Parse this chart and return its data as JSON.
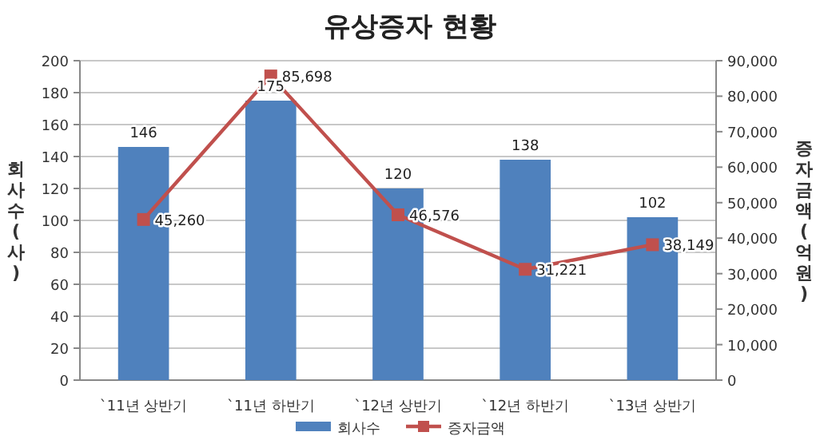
{
  "chart_data": {
    "type": "bar",
    "title": "유상증자 현황",
    "ylabel": "회사수(사)",
    "y2label": "증자금액(억원)",
    "categories": [
      "`11년 상반기",
      "`11년 하반기",
      "`12년 상반기",
      "`12년 하반기",
      "`13년 상반기"
    ],
    "series": [
      {
        "name": "회사수",
        "color": "#4f81bd",
        "values": [
          146,
          175,
          120,
          138,
          102
        ]
      },
      {
        "name": "증자금액",
        "type": "line",
        "axis": "y2",
        "color": "#c0504d",
        "marker": "square",
        "values": [
          45260,
          85698,
          46576,
          31221,
          38149
        ],
        "value_labels": [
          "45,260",
          "85,698",
          "46,576",
          "31,221",
          "38,149"
        ]
      }
    ],
    "ylim": [
      0,
      200
    ],
    "yticks": [
      0,
      20,
      40,
      60,
      80,
      100,
      120,
      140,
      160,
      180,
      200
    ],
    "y2lim": [
      0,
      90000
    ],
    "y2ticks": [
      {
        "value": 0,
        "label": "0"
      },
      {
        "value": 10000,
        "label": "10,000"
      },
      {
        "value": 20000,
        "label": "20,000"
      },
      {
        "value": 30000,
        "label": "30,000"
      },
      {
        "value": 40000,
        "label": "40,000"
      },
      {
        "value": 50000,
        "label": "50,000"
      },
      {
        "value": 60000,
        "label": "60,000"
      },
      {
        "value": 70000,
        "label": "70,000"
      },
      {
        "value": 80000,
        "label": "80,000"
      },
      {
        "value": 90000,
        "label": "90,000"
      }
    ],
    "grid": "y",
    "legend": "bottom",
    "data_labels": true
  }
}
